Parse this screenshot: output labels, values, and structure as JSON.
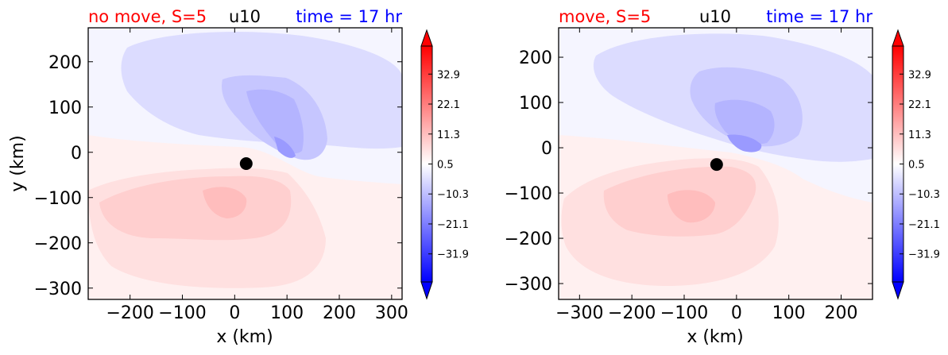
{
  "colors": {
    "title_left": "#ff0000",
    "title_center": "#000000",
    "title_right": "#0000ff",
    "positive": "#ff0000",
    "negative": "#0000ff",
    "neutral": "#ffffff",
    "center_marker": "#000000"
  },
  "chart_data": [
    {
      "type": "heatmap",
      "title_left": "no move, S=5",
      "title_center": "u10",
      "title_right": "time = 17 hr",
      "xlabel": "x (km)",
      "ylabel": "y (km)",
      "xlim": [
        -280,
        320
      ],
      "ylim": [
        -325,
        275
      ],
      "xticks": [
        -200,
        -100,
        0,
        100,
        200,
        300
      ],
      "xtick_labels": [
        "−200",
        "−100",
        "0",
        "100",
        "200",
        "300"
      ],
      "yticks": [
        200,
        100,
        0,
        -100,
        -200,
        -300
      ],
      "ytick_labels": [
        "200",
        "100",
        "0",
        "−100",
        "−200",
        "−300"
      ],
      "center": {
        "x": 22,
        "y": -25
      },
      "colorbar": {
        "ticks": [
          32.9,
          22.1,
          11.3,
          0.5,
          -10.3,
          -21.1,
          -31.9
        ],
        "tick_labels": [
          "32.9",
          "22.1",
          "11.3",
          "0.5",
          "−10.3",
          "−21.1",
          "−31.9"
        ],
        "range": [
          -42,
          43
        ],
        "extend": "both"
      }
    },
    {
      "type": "heatmap",
      "title_left": "move, S=5",
      "title_center": "u10",
      "title_right": "time = 17 hr",
      "xlabel": "x (km)",
      "ylabel": "",
      "xlim": [
        -340,
        260
      ],
      "ylim": [
        -335,
        265
      ],
      "xticks": [
        -300,
        -200,
        -100,
        0,
        100,
        200
      ],
      "xtick_labels": [
        "−300",
        "−200",
        "−100",
        "0",
        "100",
        "200"
      ],
      "yticks": [
        200,
        100,
        0,
        -100,
        -200,
        -300
      ],
      "ytick_labels": [
        "200",
        "100",
        "0",
        "−100",
        "−200",
        "−300"
      ],
      "center": {
        "x": -38,
        "y": -37
      },
      "colorbar": {
        "ticks": [
          32.9,
          22.1,
          11.3,
          0.5,
          -10.3,
          -21.1,
          -31.9
        ],
        "tick_labels": [
          "32.9",
          "22.1",
          "11.3",
          "0.5",
          "−10.3",
          "−21.1",
          "−31.9"
        ],
        "range": [
          -42,
          43
        ],
        "extend": "both"
      }
    }
  ]
}
